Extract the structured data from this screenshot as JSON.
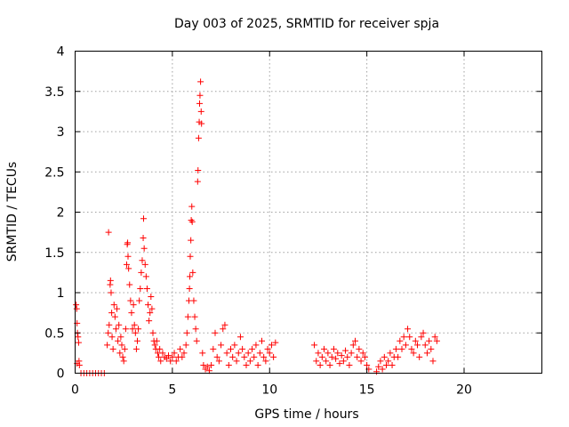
{
  "chart_data": {
    "type": "scatter",
    "title": "Day 003 of 2025, SRMTID for receiver spja",
    "xlabel": "GPS time / hours",
    "ylabel": "SRMTID / TECUs",
    "xlim": [
      0,
      24
    ],
    "ylim": [
      0,
      4
    ],
    "xticks": [
      0,
      5,
      10,
      15,
      20
    ],
    "xtick_labels": [
      "0",
      "5",
      "10",
      "15",
      "20"
    ],
    "yticks": [
      0,
      0.5,
      1,
      1.5,
      2,
      2.5,
      3,
      3.5,
      4
    ],
    "ytick_labels": [
      "0",
      "0.5",
      "1",
      "1.5",
      "2",
      "2.5",
      "3",
      "3.5",
      "4"
    ],
    "grid": true,
    "marker": "+",
    "color": "#ff0000",
    "series": [
      {
        "name": "SRMTID",
        "points": [
          [
            0.05,
            0.85
          ],
          [
            0.08,
            0.8
          ],
          [
            0.1,
            0.62
          ],
          [
            0.12,
            0.5
          ],
          [
            0.15,
            0.45
          ],
          [
            0.18,
            0.38
          ],
          [
            0.1,
            0.12
          ],
          [
            0.2,
            0.15
          ],
          [
            0.22,
            0.1
          ],
          [
            0.3,
            0.0
          ],
          [
            0.45,
            0.0
          ],
          [
            0.6,
            0.0
          ],
          [
            0.75,
            0.0
          ],
          [
            0.9,
            0.0
          ],
          [
            1.05,
            0.0
          ],
          [
            1.2,
            0.0
          ],
          [
            1.35,
            0.0
          ],
          [
            1.5,
            0.0
          ],
          [
            1.65,
            0.35
          ],
          [
            1.7,
            0.5
          ],
          [
            1.72,
            1.75
          ],
          [
            1.75,
            0.6
          ],
          [
            1.8,
            1.1
          ],
          [
            1.82,
            1.15
          ],
          [
            1.85,
            1.0
          ],
          [
            1.88,
            0.75
          ],
          [
            1.9,
            0.45
          ],
          [
            1.95,
            0.3
          ],
          [
            2.0,
            0.85
          ],
          [
            2.05,
            0.7
          ],
          [
            2.1,
            0.55
          ],
          [
            2.15,
            0.8
          ],
          [
            2.2,
            0.4
          ],
          [
            2.25,
            0.6
          ],
          [
            2.3,
            0.25
          ],
          [
            2.35,
            0.45
          ],
          [
            2.4,
            0.35
          ],
          [
            2.45,
            0.2
          ],
          [
            2.5,
            0.15
          ],
          [
            2.55,
            0.3
          ],
          [
            2.6,
            0.55
          ],
          [
            2.65,
            1.35
          ],
          [
            2.68,
            1.6
          ],
          [
            2.7,
            1.62
          ],
          [
            2.72,
            1.45
          ],
          [
            2.75,
            1.3
          ],
          [
            2.8,
            1.1
          ],
          [
            2.85,
            0.9
          ],
          [
            2.9,
            0.75
          ],
          [
            2.95,
            0.55
          ],
          [
            3.0,
            0.85
          ],
          [
            3.05,
            0.6
          ],
          [
            3.1,
            0.5
          ],
          [
            3.15,
            0.3
          ],
          [
            3.2,
            0.4
          ],
          [
            3.25,
            0.55
          ],
          [
            3.3,
            0.9
          ],
          [
            3.35,
            1.05
          ],
          [
            3.4,
            1.25
          ],
          [
            3.45,
            1.4
          ],
          [
            3.5,
            1.68
          ],
          [
            3.52,
            1.92
          ],
          [
            3.55,
            1.55
          ],
          [
            3.6,
            1.35
          ],
          [
            3.65,
            1.2
          ],
          [
            3.7,
            1.05
          ],
          [
            3.75,
            0.85
          ],
          [
            3.8,
            0.65
          ],
          [
            3.85,
            0.75
          ],
          [
            3.9,
            0.95
          ],
          [
            3.95,
            0.8
          ],
          [
            4.0,
            0.5
          ],
          [
            4.05,
            0.4
          ],
          [
            4.1,
            0.35
          ],
          [
            4.15,
            0.3
          ],
          [
            4.2,
            0.4
          ],
          [
            4.25,
            0.25
          ],
          [
            4.3,
            0.2
          ],
          [
            4.35,
            0.3
          ],
          [
            4.4,
            0.15
          ],
          [
            4.5,
            0.25
          ],
          [
            4.6,
            0.2
          ],
          [
            4.7,
            0.18
          ],
          [
            4.8,
            0.22
          ],
          [
            4.9,
            0.15
          ],
          [
            5.0,
            0.2
          ],
          [
            5.1,
            0.25
          ],
          [
            5.2,
            0.15
          ],
          [
            5.3,
            0.2
          ],
          [
            5.4,
            0.3
          ],
          [
            5.5,
            0.2
          ],
          [
            5.6,
            0.25
          ],
          [
            5.7,
            0.35
          ],
          [
            5.75,
            0.5
          ],
          [
            5.8,
            0.7
          ],
          [
            5.85,
            0.9
          ],
          [
            5.88,
            1.05
          ],
          [
            5.9,
            1.2
          ],
          [
            5.92,
            1.45
          ],
          [
            5.95,
            1.65
          ],
          [
            5.97,
            1.9
          ],
          [
            6.0,
            2.07
          ],
          [
            6.02,
            1.88
          ],
          [
            6.05,
            1.25
          ],
          [
            6.1,
            0.9
          ],
          [
            6.15,
            0.7
          ],
          [
            6.2,
            0.55
          ],
          [
            6.25,
            0.4
          ],
          [
            6.3,
            2.38
          ],
          [
            6.32,
            2.52
          ],
          [
            6.35,
            2.92
          ],
          [
            6.38,
            3.12
          ],
          [
            6.4,
            3.35
          ],
          [
            6.42,
            3.45
          ],
          [
            6.45,
            3.62
          ],
          [
            6.48,
            3.25
          ],
          [
            6.5,
            3.1
          ],
          [
            6.55,
            0.25
          ],
          [
            6.6,
            0.1
          ],
          [
            6.7,
            0.05
          ],
          [
            6.8,
            0.08
          ],
          [
            6.9,
            0.03
          ],
          [
            7.0,
            0.1
          ],
          [
            7.1,
            0.3
          ],
          [
            7.2,
            0.5
          ],
          [
            7.3,
            0.2
          ],
          [
            7.4,
            0.15
          ],
          [
            7.5,
            0.35
          ],
          [
            7.6,
            0.55
          ],
          [
            7.7,
            0.6
          ],
          [
            7.8,
            0.25
          ],
          [
            7.9,
            0.1
          ],
          [
            8.0,
            0.3
          ],
          [
            8.1,
            0.2
          ],
          [
            8.2,
            0.35
          ],
          [
            8.3,
            0.15
          ],
          [
            8.4,
            0.25
          ],
          [
            8.5,
            0.45
          ],
          [
            8.6,
            0.3
          ],
          [
            8.7,
            0.2
          ],
          [
            8.8,
            0.1
          ],
          [
            8.9,
            0.25
          ],
          [
            9.0,
            0.15
          ],
          [
            9.1,
            0.3
          ],
          [
            9.2,
            0.2
          ],
          [
            9.3,
            0.35
          ],
          [
            9.4,
            0.1
          ],
          [
            9.5,
            0.25
          ],
          [
            9.6,
            0.4
          ],
          [
            9.7,
            0.2
          ],
          [
            9.8,
            0.15
          ],
          [
            9.9,
            0.3
          ],
          [
            10.0,
            0.25
          ],
          [
            10.1,
            0.35
          ],
          [
            10.2,
            0.2
          ],
          [
            10.3,
            0.38
          ],
          [
            12.3,
            0.35
          ],
          [
            12.4,
            0.15
          ],
          [
            12.5,
            0.25
          ],
          [
            12.6,
            0.1
          ],
          [
            12.7,
            0.2
          ],
          [
            12.8,
            0.3
          ],
          [
            12.9,
            0.15
          ],
          [
            13.0,
            0.25
          ],
          [
            13.1,
            0.1
          ],
          [
            13.2,
            0.2
          ],
          [
            13.3,
            0.3
          ],
          [
            13.4,
            0.18
          ],
          [
            13.5,
            0.25
          ],
          [
            13.6,
            0.12
          ],
          [
            13.7,
            0.22
          ],
          [
            13.8,
            0.15
          ],
          [
            13.9,
            0.28
          ],
          [
            14.0,
            0.2
          ],
          [
            14.1,
            0.1
          ],
          [
            14.2,
            0.25
          ],
          [
            14.3,
            0.35
          ],
          [
            14.4,
            0.4
          ],
          [
            14.5,
            0.2
          ],
          [
            14.6,
            0.3
          ],
          [
            14.7,
            0.15
          ],
          [
            14.8,
            0.25
          ],
          [
            14.9,
            0.2
          ],
          [
            15.0,
            0.1
          ],
          [
            15.1,
            0.05
          ],
          [
            15.5,
            0.02
          ],
          [
            15.6,
            0.08
          ],
          [
            15.7,
            0.15
          ],
          [
            15.8,
            0.05
          ],
          [
            15.9,
            0.2
          ],
          [
            16.0,
            0.1
          ],
          [
            16.1,
            0.15
          ],
          [
            16.2,
            0.25
          ],
          [
            16.3,
            0.1
          ],
          [
            16.4,
            0.2
          ],
          [
            16.5,
            0.3
          ],
          [
            16.6,
            0.2
          ],
          [
            16.7,
            0.4
          ],
          [
            16.8,
            0.3
          ],
          [
            16.9,
            0.45
          ],
          [
            17.0,
            0.35
          ],
          [
            17.1,
            0.55
          ],
          [
            17.2,
            0.45
          ],
          [
            17.3,
            0.3
          ],
          [
            17.4,
            0.25
          ],
          [
            17.5,
            0.4
          ],
          [
            17.6,
            0.35
          ],
          [
            17.7,
            0.2
          ],
          [
            17.8,
            0.45
          ],
          [
            17.9,
            0.5
          ],
          [
            18.0,
            0.35
          ],
          [
            18.1,
            0.25
          ],
          [
            18.2,
            0.4
          ],
          [
            18.3,
            0.3
          ],
          [
            18.4,
            0.15
          ],
          [
            18.5,
            0.45
          ],
          [
            18.6,
            0.4
          ]
        ]
      }
    ]
  }
}
